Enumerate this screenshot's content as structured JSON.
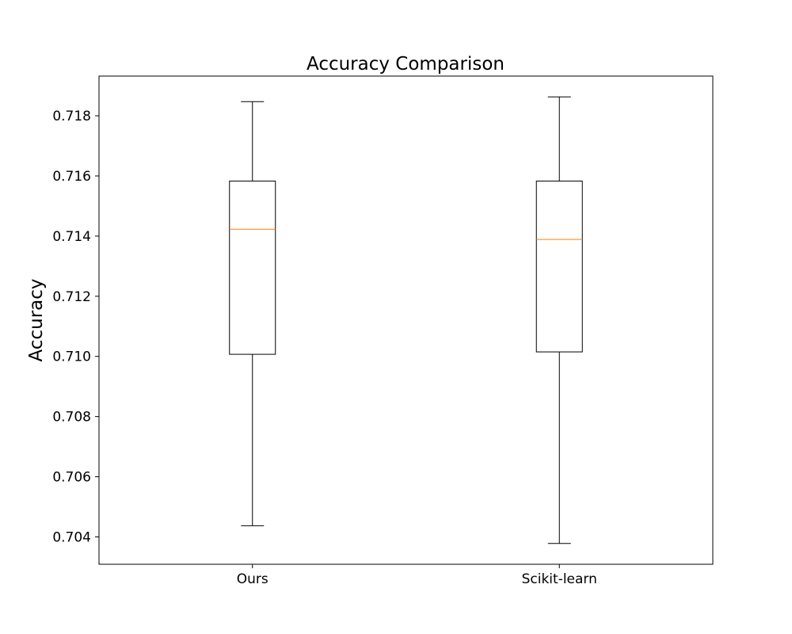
{
  "chart_data": {
    "type": "box",
    "title": "Accuracy Comparison",
    "xlabel": "",
    "ylabel": "Accuracy",
    "categories": [
      "Ours",
      "Scikit-learn"
    ],
    "boxes": [
      {
        "name": "Ours",
        "whisker_low": 0.70437,
        "q1": 0.71007,
        "median": 0.71423,
        "q3": 0.71583,
        "whisker_high": 0.71847
      },
      {
        "name": "Scikit-learn",
        "whisker_low": 0.70378,
        "q1": 0.71015,
        "median": 0.71389,
        "q3": 0.71583,
        "whisker_high": 0.71863
      }
    ],
    "ylim": [
      0.70309,
      0.71932
    ],
    "yticks": [
      0.704,
      0.706,
      0.708,
      0.71,
      0.712,
      0.714,
      0.716,
      0.718
    ],
    "ytick_labels": [
      "0.704",
      "0.706",
      "0.708",
      "0.710",
      "0.712",
      "0.714",
      "0.716",
      "0.718"
    ],
    "grid": false,
    "colors": {
      "box_edge": "#000000",
      "median": "#ff7f0e",
      "whisker": "#000000",
      "axes": "#000000"
    }
  }
}
